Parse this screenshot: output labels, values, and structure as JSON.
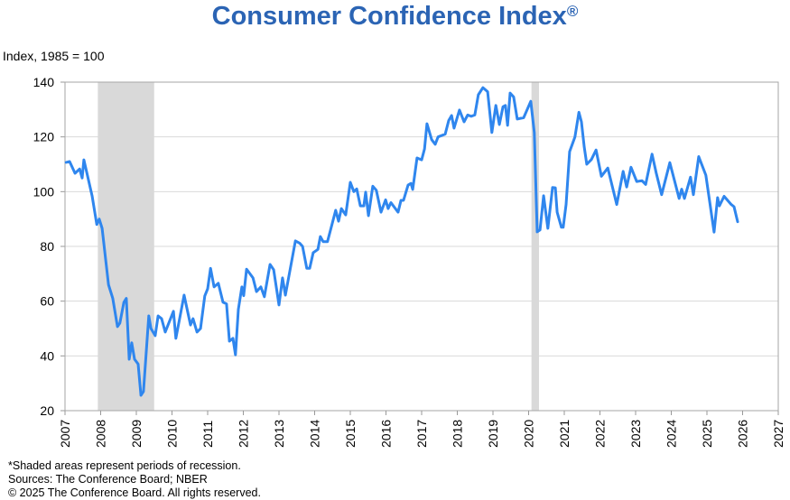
{
  "chart_data": {
    "type": "line",
    "title": "Consumer Confidence Index",
    "title_mark": "®",
    "ylabel": "Index, 1985 = 100",
    "xlabel": "",
    "xlim": [
      2007,
      2027
    ],
    "ylim": [
      20,
      140
    ],
    "yticks": [
      20,
      40,
      60,
      80,
      100,
      120,
      140
    ],
    "xticks": [
      "2007",
      "2008",
      "2009",
      "2010",
      "2011",
      "2012",
      "2013",
      "2014",
      "2015",
      "2016",
      "2017",
      "2018",
      "2019",
      "2020",
      "2021",
      "2022",
      "2023",
      "2024",
      "2025",
      "2026",
      "2027"
    ],
    "grid": "horizontal",
    "line_color": "#2f86ee",
    "recession_color": "#d9d9d9",
    "recessions": [
      [
        2007.92,
        2009.5
      ],
      [
        2020.08,
        2020.29
      ]
    ],
    "series": [
      {
        "points": [
          [
            2007.03,
            110.7
          ],
          [
            2007.13,
            111
          ],
          [
            2007.28,
            106.7
          ],
          [
            2007.41,
            108.3
          ],
          [
            2007.48,
            105
          ],
          [
            2007.53,
            111.6
          ],
          [
            2007.76,
            98.5
          ],
          [
            2007.89,
            88
          ],
          [
            2007.96,
            90
          ],
          [
            2008.04,
            86.6
          ],
          [
            2008.22,
            66
          ],
          [
            2008.34,
            61
          ],
          [
            2008.47,
            50.7
          ],
          [
            2008.54,
            52
          ],
          [
            2008.65,
            59.6
          ],
          [
            2008.72,
            61
          ],
          [
            2008.8,
            38.8
          ],
          [
            2008.87,
            44.8
          ],
          [
            2008.95,
            38.8
          ],
          [
            2009.05,
            37
          ],
          [
            2009.13,
            25.6
          ],
          [
            2009.2,
            27
          ],
          [
            2009.35,
            54.6
          ],
          [
            2009.41,
            50
          ],
          [
            2009.53,
            47.4
          ],
          [
            2009.61,
            54.6
          ],
          [
            2009.71,
            53.6
          ],
          [
            2009.81,
            48.7
          ],
          [
            2010.04,
            56.3
          ],
          [
            2010.11,
            46.4
          ],
          [
            2010.34,
            62.2
          ],
          [
            2010.52,
            51.3
          ],
          [
            2010.59,
            53.6
          ],
          [
            2010.7,
            48.7
          ],
          [
            2010.8,
            50
          ],
          [
            2010.92,
            61.9
          ],
          [
            2011.0,
            64.5
          ],
          [
            2011.08,
            72
          ],
          [
            2011.18,
            65.2
          ],
          [
            2011.3,
            66.5
          ],
          [
            2011.43,
            59.6
          ],
          [
            2011.53,
            59
          ],
          [
            2011.61,
            45.4
          ],
          [
            2011.71,
            46.4
          ],
          [
            2011.78,
            40.4
          ],
          [
            2011.86,
            57
          ],
          [
            2011.96,
            65.2
          ],
          [
            2012.01,
            62
          ],
          [
            2012.09,
            71.7
          ],
          [
            2012.27,
            68.5
          ],
          [
            2012.37,
            63.5
          ],
          [
            2012.49,
            65.2
          ],
          [
            2012.59,
            61.6
          ],
          [
            2012.75,
            73.4
          ],
          [
            2012.85,
            71.5
          ],
          [
            2013.0,
            58.6
          ],
          [
            2013.1,
            68.5
          ],
          [
            2013.18,
            62.2
          ],
          [
            2013.46,
            82
          ],
          [
            2013.58,
            81.2
          ],
          [
            2013.66,
            80
          ],
          [
            2013.78,
            72
          ],
          [
            2013.86,
            72
          ],
          [
            2013.96,
            77.7
          ],
          [
            2014.09,
            78.9
          ],
          [
            2014.16,
            83.6
          ],
          [
            2014.24,
            81.7
          ],
          [
            2014.36,
            81.7
          ],
          [
            2014.59,
            93.2
          ],
          [
            2014.67,
            89.2
          ],
          [
            2014.75,
            93.8
          ],
          [
            2014.87,
            91.5
          ],
          [
            2015.0,
            103.4
          ],
          [
            2015.1,
            100
          ],
          [
            2015.18,
            101
          ],
          [
            2015.28,
            94.8
          ],
          [
            2015.38,
            94.8
          ],
          [
            2015.43,
            99.8
          ],
          [
            2015.51,
            91.2
          ],
          [
            2015.63,
            102
          ],
          [
            2015.73,
            100.5
          ],
          [
            2015.86,
            92.5
          ],
          [
            2015.99,
            97
          ],
          [
            2016.06,
            93.8
          ],
          [
            2016.14,
            96
          ],
          [
            2016.34,
            92.5
          ],
          [
            2016.42,
            96.8
          ],
          [
            2016.49,
            96.8
          ],
          [
            2016.62,
            102.4
          ],
          [
            2016.7,
            103
          ],
          [
            2016.75,
            100.8
          ],
          [
            2016.87,
            112.3
          ],
          [
            2017.0,
            111.6
          ],
          [
            2017.08,
            115.6
          ],
          [
            2017.15,
            124.8
          ],
          [
            2017.28,
            119
          ],
          [
            2017.38,
            117.3
          ],
          [
            2017.46,
            120
          ],
          [
            2017.66,
            121
          ],
          [
            2017.76,
            126
          ],
          [
            2017.84,
            127.8
          ],
          [
            2017.91,
            123.2
          ],
          [
            2018.06,
            129.8
          ],
          [
            2018.19,
            125.5
          ],
          [
            2018.29,
            128
          ],
          [
            2018.39,
            127.5
          ],
          [
            2018.49,
            128
          ],
          [
            2018.59,
            135.4
          ],
          [
            2018.72,
            138
          ],
          [
            2018.85,
            136.5
          ],
          [
            2018.97,
            121.6
          ],
          [
            2019.08,
            131.5
          ],
          [
            2019.18,
            124.5
          ],
          [
            2019.28,
            131
          ],
          [
            2019.35,
            131.5
          ],
          [
            2019.41,
            124.2
          ],
          [
            2019.48,
            136
          ],
          [
            2019.58,
            134.6
          ],
          [
            2019.68,
            126.5
          ],
          [
            2019.86,
            127
          ],
          [
            2020.06,
            133
          ],
          [
            2020.16,
            121.5
          ],
          [
            2020.24,
            85.3
          ],
          [
            2020.32,
            86
          ],
          [
            2020.42,
            98.5
          ],
          [
            2020.54,
            86.6
          ],
          [
            2020.67,
            101.5
          ],
          [
            2020.75,
            101.4
          ],
          [
            2020.8,
            92.5
          ],
          [
            2020.92,
            87
          ],
          [
            2020.97,
            87
          ],
          [
            2021.05,
            95.3
          ],
          [
            2021.15,
            114.6
          ],
          [
            2021.3,
            120
          ],
          [
            2021.41,
            129
          ],
          [
            2021.48,
            125.5
          ],
          [
            2021.56,
            116.3
          ],
          [
            2021.63,
            110
          ],
          [
            2021.76,
            111.7
          ],
          [
            2021.89,
            115.2
          ],
          [
            2022.04,
            105.6
          ],
          [
            2022.22,
            108.6
          ],
          [
            2022.47,
            95.3
          ],
          [
            2022.65,
            107.4
          ],
          [
            2022.75,
            101.7
          ],
          [
            2022.87,
            108.9
          ],
          [
            2023.03,
            103.7
          ],
          [
            2023.18,
            104
          ],
          [
            2023.28,
            102.6
          ],
          [
            2023.46,
            113.7
          ],
          [
            2023.58,
            106.7
          ],
          [
            2023.73,
            98.9
          ],
          [
            2023.96,
            110.6
          ],
          [
            2024.09,
            104
          ],
          [
            2024.22,
            97.5
          ],
          [
            2024.29,
            100.9
          ],
          [
            2024.37,
            97.5
          ],
          [
            2024.54,
            105.3
          ],
          [
            2024.62,
            98.9
          ],
          [
            2024.77,
            112.8
          ],
          [
            2024.97,
            106
          ],
          [
            2025.2,
            85.2
          ],
          [
            2025.3,
            97.8
          ],
          [
            2025.35,
            94.8
          ],
          [
            2025.48,
            98.3
          ],
          [
            2025.68,
            95.3
          ],
          [
            2025.76,
            94.5
          ],
          [
            2025.86,
            89
          ]
        ]
      }
    ]
  },
  "footer": {
    "note": "*Shaded areas represent periods of recession.",
    "sources": "Sources: The Conference Board; NBER",
    "copyright": "© 2025 The Conference Board. All rights reserved."
  }
}
